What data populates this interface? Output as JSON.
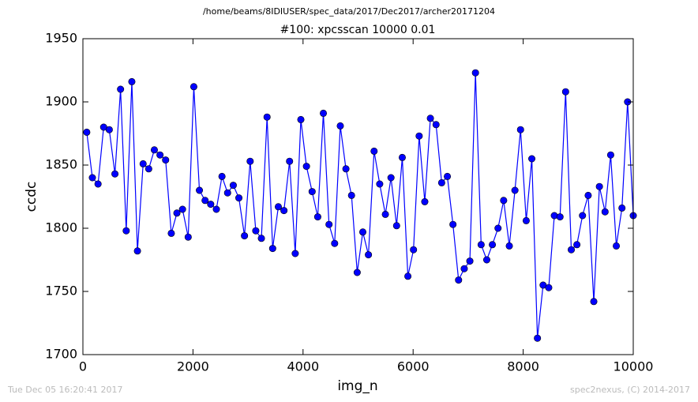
{
  "chart_data": {
    "type": "line",
    "suptitle": "/home/beams/8IDIUSER/spec_data/2017/Dec2017/archer20171204",
    "title": "#100: xpcsscan 10000 0.01",
    "xlabel": "img_n",
    "ylabel": "ccdc",
    "footer_left": "Tue Dec 05 16:20:41 2017",
    "footer_right": "spec2nexus, (C) 2014-2017",
    "color": "#0000ff",
    "xlim": [
      0,
      10000
    ],
    "xticks": [
      0,
      2000,
      4000,
      6000,
      8000,
      10000
    ],
    "ylim": [
      1700,
      1950
    ],
    "yticks": [
      1700,
      1750,
      1800,
      1850,
      1900,
      1950
    ],
    "x": [
      70,
      172,
      275,
      377,
      479,
      582,
      684,
      787,
      889,
      991,
      1094,
      1196,
      1298,
      1401,
      1503,
      1606,
      1708,
      1810,
      1913,
      2015,
      2117,
      2220,
      2322,
      2425,
      2527,
      2629,
      2732,
      2834,
      2936,
      3039,
      3141,
      3243,
      3346,
      3448,
      3551,
      3653,
      3755,
      3858,
      3960,
      4062,
      4165,
      4267,
      4369,
      4472,
      4574,
      4677,
      4779,
      4881,
      4984,
      5086,
      5188,
      5291,
      5393,
      5496,
      5598,
      5700,
      5803,
      5905,
      6007,
      6110,
      6212,
      6314,
      6417,
      6519,
      6622,
      6724,
      6826,
      6929,
      7031,
      7133,
      7236,
      7338,
      7440,
      7543,
      7645,
      7748,
      7850,
      7952,
      8055,
      8157,
      8259,
      8362,
      8464,
      8566,
      8669,
      8771,
      8874,
      8976,
      9078,
      9181,
      9283,
      9385,
      9488,
      9590,
      9692,
      9795,
      9897,
      10000
    ],
    "values": [
      1876,
      1840,
      1835,
      1880,
      1878,
      1843,
      1910,
      1798,
      1916,
      1782,
      1851,
      1847,
      1862,
      1858,
      1854,
      1796,
      1812,
      1815,
      1793,
      1912,
      1830,
      1822,
      1819,
      1815,
      1841,
      1828,
      1834,
      1824,
      1794,
      1853,
      1798,
      1792,
      1888,
      1784,
      1817,
      1814,
      1853,
      1780,
      1886,
      1849,
      1829,
      1809,
      1891,
      1803,
      1788,
      1881,
      1847,
      1826,
      1765,
      1797,
      1779,
      1861,
      1835,
      1811,
      1840,
      1802,
      1856,
      1762,
      1783,
      1873,
      1821,
      1887,
      1882,
      1836,
      1841,
      1803,
      1759,
      1768,
      1774,
      1923,
      1787,
      1775,
      1787,
      1800,
      1822,
      1786,
      1830,
      1878,
      1806,
      1855,
      1713,
      1755,
      1753,
      1810,
      1809,
      1908,
      1783,
      1787,
      1810,
      1826,
      1742,
      1833,
      1813,
      1858,
      1786,
      1816,
      1900,
      1810
    ]
  }
}
